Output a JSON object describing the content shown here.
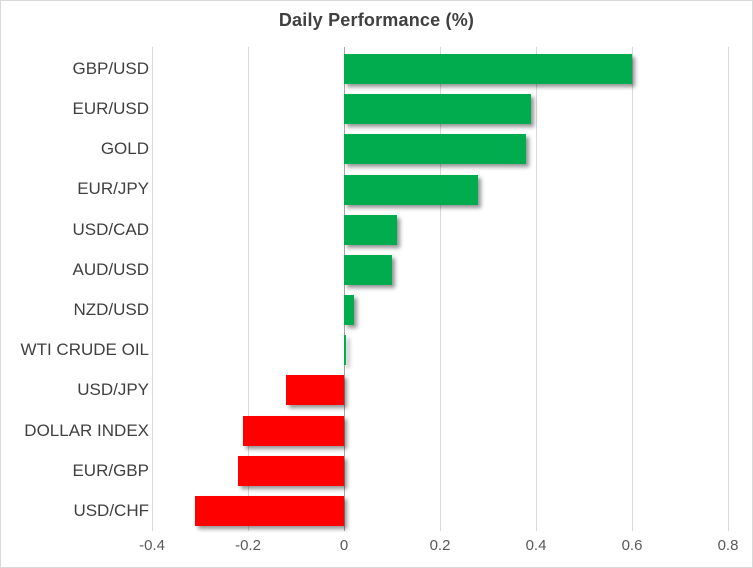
{
  "chart_data": {
    "type": "bar",
    "orientation": "horizontal",
    "title": "Daily Performance (%)",
    "categories": [
      "GBP/USD",
      "EUR/USD",
      "GOLD",
      "EUR/JPY",
      "USD/CAD",
      "AUD/USD",
      "NZD/USD",
      "WTI CRUDE OIL",
      "USD/JPY",
      "DOLLAR INDEX",
      "EUR/GBP",
      "USD/CHF"
    ],
    "values": [
      0.6,
      0.39,
      0.38,
      0.28,
      0.11,
      0.1,
      0.02,
      0.005,
      -0.12,
      -0.21,
      -0.22,
      -0.31
    ],
    "xlabel": "",
    "ylabel": "",
    "xlim": [
      -0.4,
      0.8
    ],
    "x_ticks": [
      -0.4,
      -0.2,
      0,
      0.2,
      0.4,
      0.6,
      0.8
    ],
    "x_tick_labels": [
      "-0.4",
      "-0.2",
      "0",
      "0.2",
      "0.4",
      "0.6",
      "0.8"
    ],
    "grid": true,
    "legend": "none",
    "colors": {
      "positive": "#00AC4E",
      "negative": "#FF0000",
      "gridline": "#D9D9D9",
      "axis_line": "#A6A6A6",
      "title_text": "#404040",
      "category_text": "#404040",
      "tick_text": "#595959",
      "border": "#D9D9D9",
      "background": "#FFFFFF"
    }
  }
}
